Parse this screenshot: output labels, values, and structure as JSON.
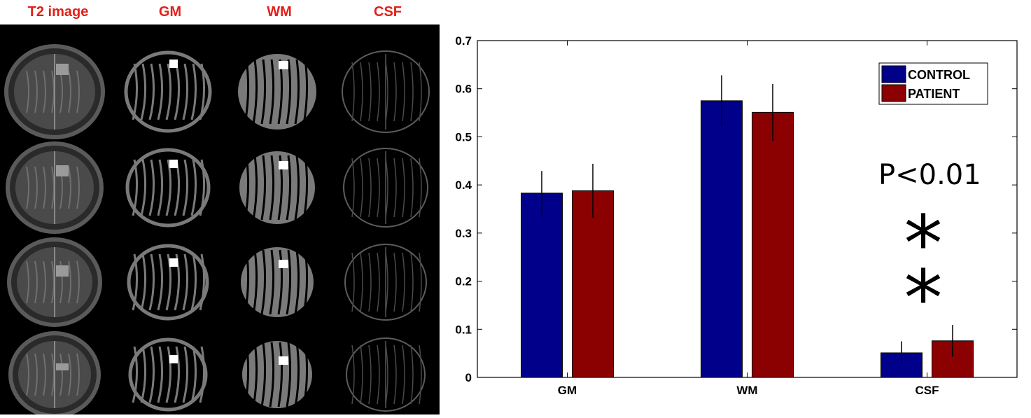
{
  "figure_labels": {
    "columns": [
      "T2 image",
      "GM",
      "WM",
      "CSF"
    ]
  },
  "mri_grid": {
    "rows": 4,
    "columns": [
      "T2 image",
      "GM",
      "WM",
      "CSF"
    ],
    "colors": {
      "background": "#000000",
      "tissue": "#7a7a7a",
      "t2_bright": "#9a9a9a",
      "roi": "#ffffff"
    }
  },
  "chart_data": {
    "type": "bar",
    "categories": [
      "GM",
      "WM",
      "CSF"
    ],
    "series": [
      {
        "name": "CONTROL",
        "color": "#00008b",
        "values": [
          0.383,
          0.575,
          0.051
        ],
        "error": [
          0.046,
          0.053,
          0.024
        ]
      },
      {
        "name": "PATIENT",
        "color": "#8b0000",
        "values": [
          0.388,
          0.551,
          0.076
        ],
        "error": [
          0.056,
          0.059,
          0.033
        ]
      }
    ],
    "ylim": [
      0,
      0.7
    ],
    "yticks": [
      "0",
      "0.1",
      "0.2",
      "0.3",
      "0.4",
      "0.5",
      "0.6",
      "0.7"
    ],
    "ytick_values": [
      0,
      0.1,
      0.2,
      0.3,
      0.4,
      0.5,
      0.6,
      0.7
    ],
    "legend_position": "top-right",
    "annotation": {
      "text": "P<0.01",
      "stars": [
        "*",
        "*"
      ],
      "category": "CSF"
    }
  }
}
